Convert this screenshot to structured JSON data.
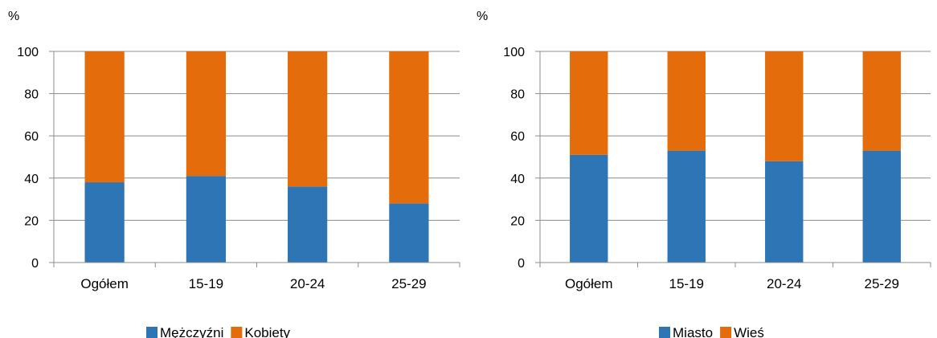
{
  "chart_data": [
    {
      "type": "bar",
      "stacked": true,
      "title": "",
      "ylabel": "%",
      "xlabel": "",
      "ylim": [
        0,
        100
      ],
      "yticks": [
        "0",
        "20",
        "40",
        "60",
        "80",
        "100"
      ],
      "categories": [
        "Ogółem",
        "15-19",
        "20-24",
        "25-29"
      ],
      "legend_position": "bottom",
      "grid": true,
      "series": [
        {
          "name": "Mężczyźni",
          "color": "#2e75b6",
          "values": [
            38,
            41,
            36,
            28
          ]
        },
        {
          "name": "Kobiety",
          "color": "#e46c0a",
          "values": [
            62,
            59,
            64,
            72
          ]
        }
      ]
    },
    {
      "type": "bar",
      "stacked": true,
      "title": "",
      "ylabel": "%",
      "xlabel": "",
      "ylim": [
        0,
        100
      ],
      "yticks": [
        "0",
        "20",
        "40",
        "60",
        "80",
        "100"
      ],
      "categories": [
        "Ogółem",
        "15-19",
        "20-24",
        "25-29"
      ],
      "legend_position": "bottom",
      "grid": true,
      "series": [
        {
          "name": "Miasto",
          "color": "#2e75b6",
          "values": [
            51,
            53,
            48,
            53
          ]
        },
        {
          "name": "Wieś",
          "color": "#e46c0a",
          "values": [
            49,
            47,
            52,
            47
          ]
        }
      ]
    }
  ]
}
